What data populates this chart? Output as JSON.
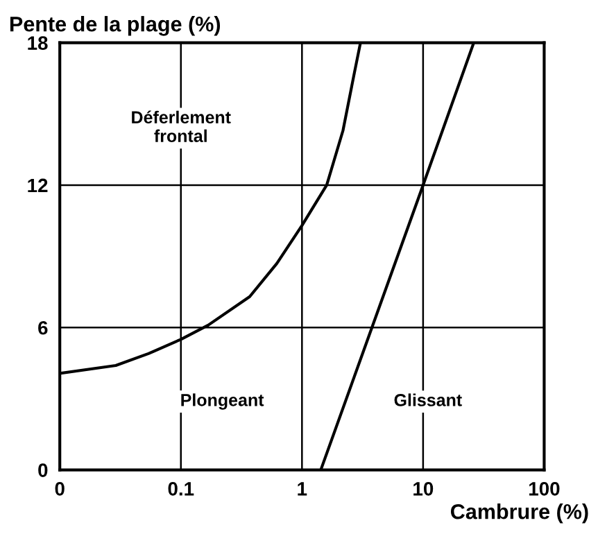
{
  "chart_data": {
    "type": "line",
    "ylabel": "Pente de la plage (%)",
    "xlabel": "Cambrure (%)",
    "log": "x",
    "xlim": [
      0.01,
      100
    ],
    "xticks": [
      {
        "value": 0.01,
        "label": "0"
      },
      0.1,
      1,
      10,
      100
    ],
    "ylim": [
      0,
      18
    ],
    "yticks": [
      0,
      6,
      12,
      18
    ],
    "grid": true,
    "marker": "none",
    "line_style": "solid",
    "series": [
      {
        "color": "#000000",
        "x": [
          0.01,
          0.029,
          0.054,
          0.1,
          0.168,
          0.37,
          0.62,
          1,
          1.6,
          2.18,
          2.7,
          3.04
        ],
        "values": [
          4.07,
          4.4,
          4.9,
          5.5,
          6.1,
          7.3,
          8.7,
          10.3,
          12,
          14.3,
          16.7,
          18
        ]
      },
      {
        "color": "#000000",
        "x": [
          1.43,
          10,
          26.2
        ],
        "values": [
          0,
          12,
          18
        ]
      }
    ],
    "annotations": [
      "Déferlement\nfrontal",
      "Plongeant",
      "Glissant"
    ]
  }
}
